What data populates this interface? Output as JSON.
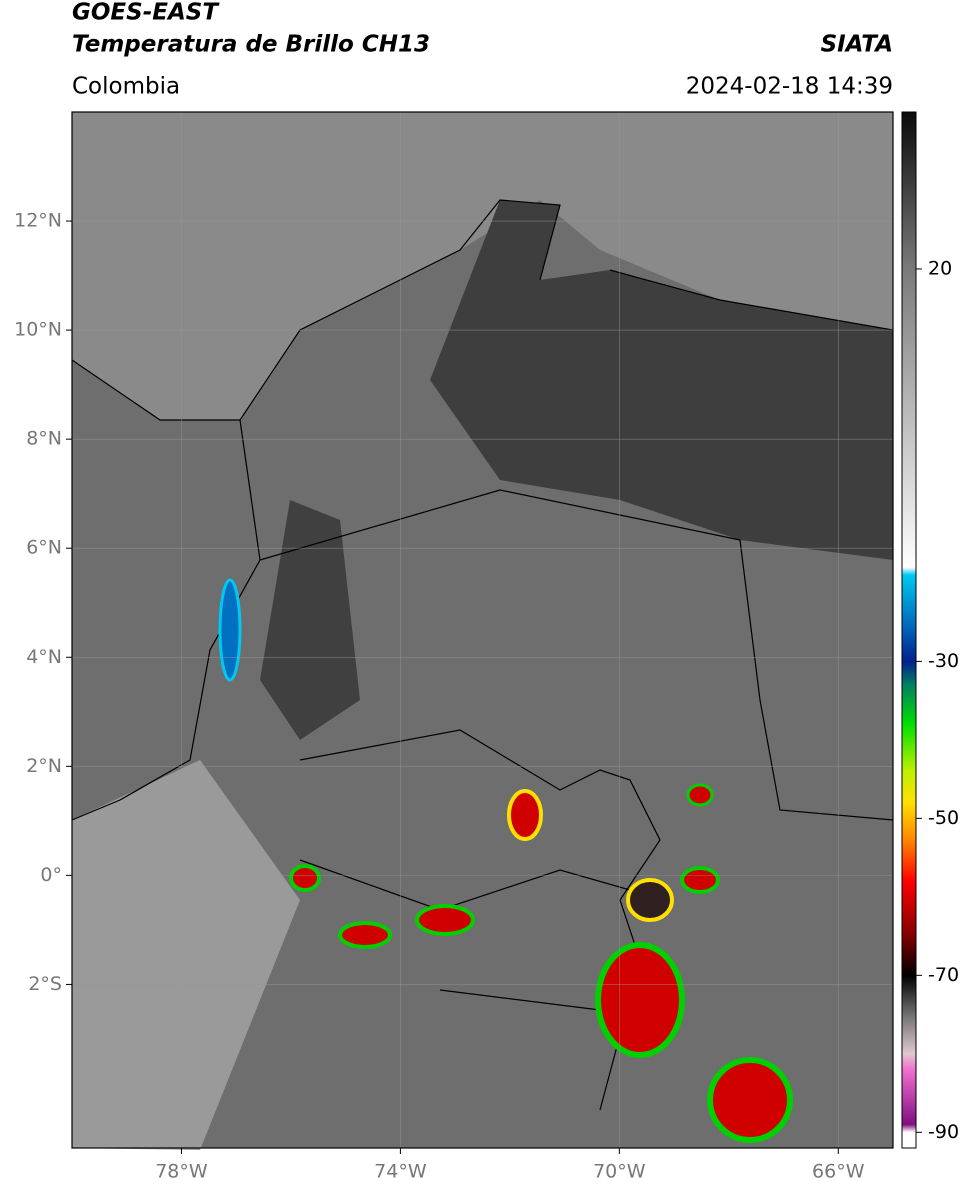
{
  "header": {
    "title": "GOES-EAST",
    "subtitle": "Temperatura de Brillo CH13",
    "source": "SIATA",
    "region": "Colombia",
    "datetime": "2024-02-18 14:39"
  },
  "map": {
    "xlim": [
      -80,
      -65
    ],
    "ylim": [
      -5,
      14
    ],
    "grid": true,
    "xticks": [
      {
        "value": -78,
        "label": "78°W"
      },
      {
        "value": -74,
        "label": "74°W"
      },
      {
        "value": -70,
        "label": "70°W"
      },
      {
        "value": -66,
        "label": "66°W"
      }
    ],
    "yticks": [
      {
        "value": 12,
        "label": "12°N"
      },
      {
        "value": 10,
        "label": "10°N"
      },
      {
        "value": 8,
        "label": "8°N"
      },
      {
        "value": 6,
        "label": "6°N"
      },
      {
        "value": 4,
        "label": "4°N"
      },
      {
        "value": 2,
        "label": "2°N"
      },
      {
        "value": 0,
        "label": "0°"
      },
      {
        "value": -2,
        "label": "2°S"
      }
    ]
  },
  "colorbar": {
    "lim": [
      -92,
      40
    ],
    "ticks": [
      20,
      -30,
      -50,
      -70,
      -90
    ],
    "stops": [
      {
        "value": 40,
        "color": "#0a0a0a"
      },
      {
        "value": 20,
        "color": "#7a7a7a"
      },
      {
        "value": -18,
        "color": "#ffffff"
      },
      {
        "value": -19,
        "color": "#00c8f0"
      },
      {
        "value": -25,
        "color": "#0070c0"
      },
      {
        "value": -30,
        "color": "#002090"
      },
      {
        "value": -33,
        "color": "#008060"
      },
      {
        "value": -38,
        "color": "#00e000"
      },
      {
        "value": -44,
        "color": "#c0f000"
      },
      {
        "value": -48,
        "color": "#ffe000"
      },
      {
        "value": -53,
        "color": "#ff8000"
      },
      {
        "value": -58,
        "color": "#ff0000"
      },
      {
        "value": -65,
        "color": "#800000"
      },
      {
        "value": -70,
        "color": "#000000"
      },
      {
        "value": -75,
        "color": "#707070"
      },
      {
        "value": -80,
        "color": "#e0c8d0"
      },
      {
        "value": -82,
        "color": "#f070d0"
      },
      {
        "value": -89,
        "color": "#801080"
      },
      {
        "value": -90,
        "color": "#ffffff"
      },
      {
        "value": -92,
        "color": "#ffffff"
      }
    ]
  }
}
